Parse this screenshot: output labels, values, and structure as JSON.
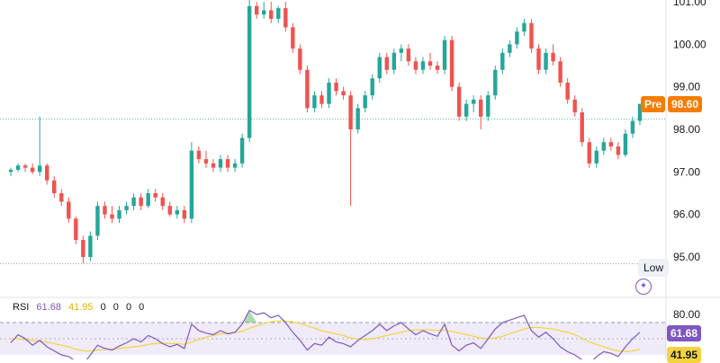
{
  "chart_data": {
    "type": "candlestick",
    "price_axis": {
      "ticks": [
        "101.00",
        "100.00",
        "99.00",
        "98.00",
        "97.00",
        "96.00",
        "95.00"
      ],
      "ylim": [
        94.7,
        101.1
      ]
    },
    "last_price": {
      "prefix": "Pre",
      "value": "98.60"
    },
    "low_marker": {
      "label": "Low",
      "value": 94.84
    },
    "candles": [
      [
        97.0,
        97.1,
        96.9,
        97.05
      ],
      [
        97.05,
        97.2,
        97.0,
        97.15
      ],
      [
        97.15,
        97.2,
        97.0,
        97.1
      ],
      [
        97.1,
        97.2,
        96.95,
        97.0
      ],
      [
        97.0,
        98.3,
        96.9,
        97.15
      ],
      [
        97.15,
        97.2,
        96.7,
        96.8
      ],
      [
        96.8,
        96.9,
        96.4,
        96.5
      ],
      [
        96.5,
        96.6,
        96.2,
        96.3
      ],
      [
        96.3,
        96.4,
        95.8,
        95.9
      ],
      [
        95.9,
        95.95,
        95.3,
        95.4
      ],
      [
        95.4,
        95.5,
        94.85,
        95.0
      ],
      [
        95.0,
        95.6,
        94.9,
        95.5
      ],
      [
        95.5,
        96.3,
        95.4,
        96.2
      ],
      [
        96.2,
        96.3,
        95.9,
        96.0
      ],
      [
        96.0,
        96.2,
        95.8,
        95.9
      ],
      [
        95.9,
        96.2,
        95.8,
        96.1
      ],
      [
        96.1,
        96.3,
        96.0,
        96.2
      ],
      [
        96.2,
        96.5,
        96.1,
        96.4
      ],
      [
        96.4,
        96.5,
        96.1,
        96.2
      ],
      [
        96.2,
        96.6,
        96.15,
        96.5
      ],
      [
        96.5,
        96.6,
        96.3,
        96.4
      ],
      [
        96.4,
        96.5,
        96.1,
        96.2
      ],
      [
        96.2,
        96.3,
        95.95,
        96.0
      ],
      [
        96.0,
        96.2,
        95.9,
        96.1
      ],
      [
        96.1,
        96.2,
        95.8,
        95.9
      ],
      [
        95.9,
        97.7,
        95.8,
        97.5
      ],
      [
        97.5,
        97.6,
        97.2,
        97.3
      ],
      [
        97.3,
        97.5,
        97.1,
        97.2
      ],
      [
        97.2,
        97.3,
        97.0,
        97.1
      ],
      [
        97.1,
        97.4,
        97.0,
        97.3
      ],
      [
        97.3,
        97.4,
        97.0,
        97.1
      ],
      [
        97.1,
        97.3,
        97.0,
        97.2
      ],
      [
        97.2,
        97.9,
        97.1,
        97.8
      ],
      [
        97.8,
        101.1,
        97.7,
        100.9
      ],
      [
        100.9,
        101.0,
        100.6,
        100.7
      ],
      [
        100.7,
        101.0,
        100.6,
        100.8
      ],
      [
        100.8,
        101.0,
        100.5,
        100.6
      ],
      [
        100.6,
        100.9,
        100.5,
        100.85
      ],
      [
        100.85,
        101.0,
        100.3,
        100.4
      ],
      [
        100.4,
        100.5,
        99.8,
        99.9
      ],
      [
        99.9,
        100.0,
        99.3,
        99.4
      ],
      [
        99.4,
        99.5,
        98.4,
        98.5
      ],
      [
        98.5,
        98.9,
        98.4,
        98.8
      ],
      [
        98.8,
        98.9,
        98.5,
        98.6
      ],
      [
        98.6,
        99.2,
        98.5,
        99.1
      ],
      [
        99.1,
        99.2,
        98.8,
        98.9
      ],
      [
        98.9,
        99.0,
        98.7,
        98.8
      ],
      [
        98.8,
        98.9,
        96.2,
        98.0
      ],
      [
        98.0,
        98.6,
        97.9,
        98.5
      ],
      [
        98.5,
        98.9,
        98.4,
        98.8
      ],
      [
        98.8,
        99.3,
        98.7,
        99.2
      ],
      [
        99.2,
        99.8,
        99.1,
        99.7
      ],
      [
        99.7,
        99.8,
        99.3,
        99.4
      ],
      [
        99.4,
        99.9,
        99.3,
        99.8
      ],
      [
        99.8,
        100.0,
        99.6,
        99.9
      ],
      [
        99.9,
        100.0,
        99.5,
        99.6
      ],
      [
        99.6,
        99.7,
        99.3,
        99.4
      ],
      [
        99.4,
        99.7,
        99.3,
        99.6
      ],
      [
        99.6,
        99.8,
        99.4,
        99.5
      ],
      [
        99.5,
        99.6,
        99.3,
        99.4
      ],
      [
        99.4,
        100.2,
        99.3,
        100.1
      ],
      [
        100.1,
        100.2,
        98.9,
        99.0
      ],
      [
        99.0,
        99.1,
        98.2,
        98.3
      ],
      [
        98.3,
        98.7,
        98.2,
        98.6
      ],
      [
        98.6,
        98.8,
        98.4,
        98.7
      ],
      [
        98.7,
        98.8,
        98.0,
        98.3
      ],
      [
        98.3,
        98.9,
        98.2,
        98.8
      ],
      [
        98.8,
        99.5,
        98.7,
        99.4
      ],
      [
        99.4,
        99.9,
        99.3,
        99.8
      ],
      [
        99.8,
        100.1,
        99.7,
        100.0
      ],
      [
        100.0,
        100.4,
        99.9,
        100.3
      ],
      [
        100.3,
        100.6,
        100.2,
        100.5
      ],
      [
        100.5,
        100.6,
        99.8,
        99.9
      ],
      [
        99.9,
        100.0,
        99.3,
        99.4
      ],
      [
        99.4,
        99.9,
        99.3,
        99.8
      ],
      [
        99.8,
        100.0,
        99.5,
        99.6
      ],
      [
        99.6,
        99.7,
        99.0,
        99.1
      ],
      [
        99.1,
        99.2,
        98.6,
        98.7
      ],
      [
        98.7,
        98.8,
        98.3,
        98.4
      ],
      [
        98.4,
        98.5,
        97.6,
        97.7
      ],
      [
        97.7,
        97.8,
        97.1,
        97.2
      ],
      [
        97.2,
        97.6,
        97.1,
        97.5
      ],
      [
        97.5,
        97.8,
        97.4,
        97.7
      ],
      [
        97.7,
        97.8,
        97.5,
        97.6
      ],
      [
        97.6,
        97.7,
        97.3,
        97.4
      ],
      [
        97.4,
        98.0,
        97.35,
        97.9
      ],
      [
        97.9,
        98.3,
        97.8,
        98.2
      ],
      [
        98.2,
        98.6,
        98.1,
        98.6
      ]
    ],
    "rsi": {
      "label": "RSI",
      "values": [
        "61.68",
        "41.95",
        "0",
        "0",
        "0",
        "0"
      ],
      "upper": "80.00",
      "ylim": [
        0,
        100
      ],
      "band": [
        30,
        70
      ],
      "series": [
        45,
        55,
        50,
        42,
        48,
        40,
        35,
        30,
        28,
        22,
        18,
        30,
        42,
        38,
        36,
        41,
        45,
        50,
        46,
        54,
        50,
        44,
        40,
        43,
        38,
        68,
        60,
        57,
        55,
        60,
        56,
        58,
        68,
        85,
        80,
        82,
        76,
        79,
        70,
        58,
        48,
        36,
        44,
        42,
        52,
        46,
        44,
        40,
        48,
        54,
        60,
        68,
        60,
        66,
        70,
        62,
        55,
        60,
        56,
        53,
        68,
        42,
        35,
        42,
        45,
        38,
        50,
        62,
        70,
        73,
        76,
        79,
        60,
        52,
        58,
        50,
        40,
        34,
        30,
        24,
        18,
        28,
        34,
        32,
        28,
        40,
        50,
        58
      ]
    },
    "rsi_ma": [
      50,
      50,
      49,
      48,
      47,
      46,
      44,
      42,
      40,
      37,
      35,
      35,
      36,
      37,
      37,
      38,
      39,
      40,
      41,
      43,
      44,
      44,
      44,
      44,
      43,
      46,
      49,
      52,
      54,
      56,
      57,
      58,
      59,
      63,
      66,
      69,
      71,
      72,
      72,
      71,
      69,
      66,
      63,
      60,
      58,
      56,
      54,
      51,
      50,
      49,
      50,
      52,
      54,
      56,
      58,
      60,
      61,
      61,
      61,
      60,
      61,
      59,
      57,
      55,
      53,
      51,
      50,
      51,
      53,
      56,
      59,
      62,
      64,
      64,
      63,
      62,
      60,
      58,
      55,
      51,
      46,
      43,
      40,
      37,
      35,
      34,
      35,
      37
    ]
  }
}
